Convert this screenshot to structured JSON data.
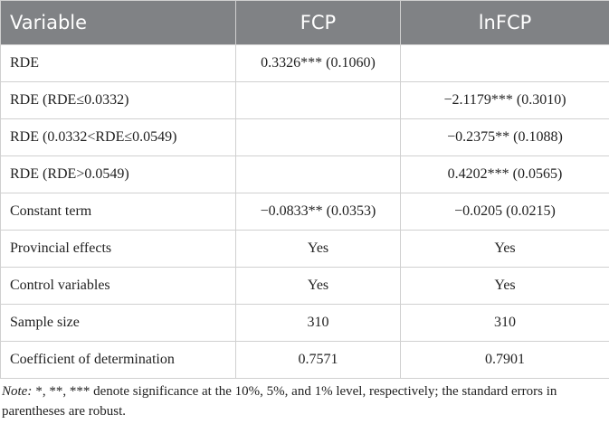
{
  "table": {
    "header": [
      "Variable",
      "FCP",
      "lnFCP"
    ],
    "rows": [
      [
        "RDE",
        "0.3326*** (0.1060)",
        null
      ],
      [
        "RDE (RDE≤0.0332)",
        null,
        "−2.1179*** (0.3010)"
      ],
      [
        "RDE (0.0332<RDE≤0.0549)",
        null,
        "−0.2375** (0.1088)"
      ],
      [
        "RDE (RDE>0.0549)",
        null,
        "0.4202*** (0.0565)"
      ],
      [
        "Constant term",
        "−0.0833** (0.0353)",
        "−0.0205 (0.0215)"
      ],
      [
        "Provincial effects",
        "Yes",
        "Yes"
      ],
      [
        "Control variables",
        "Yes",
        "Yes"
      ],
      [
        "Sample size",
        "310",
        "310"
      ],
      [
        "Coefficient of determination",
        "0.7571",
        "0.7901"
      ]
    ]
  },
  "note": {
    "label": "Note:",
    "text": "*, **, *** denote significance at the 10%, 5%, and 1% level, respectively; the standard errors in parentheses are robust."
  }
}
